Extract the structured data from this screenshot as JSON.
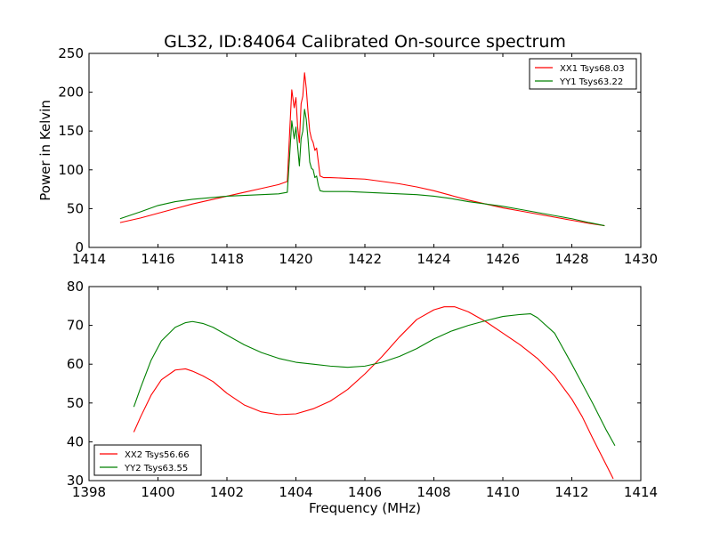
{
  "chart_data": {
    "title": "GL32, ID:84064 Calibrated On-source spectrum",
    "xlabel_shared": "Frequency (MHz)",
    "panels": [
      {
        "type": "line",
        "ylabel": "Power in Kelvin",
        "xlabel": "",
        "xlim": [
          1414,
          1430
        ],
        "ylim": [
          0,
          250
        ],
        "xticks": [
          1414,
          1416,
          1418,
          1420,
          1422,
          1424,
          1426,
          1428,
          1430
        ],
        "yticks": [
          0,
          50,
          100,
          150,
          200,
          250
        ],
        "grid": false,
        "legend_position": "top-right",
        "series": [
          {
            "name": "XX1 Tsys68.03",
            "color": "#ff0000",
            "x": [
              1414.9,
              1415.5,
              1416.0,
              1416.5,
              1417.0,
              1417.5,
              1418.0,
              1418.5,
              1419.0,
              1419.5,
              1419.75,
              1419.82,
              1419.88,
              1419.95,
              1420.0,
              1420.05,
              1420.1,
              1420.15,
              1420.2,
              1420.25,
              1420.3,
              1420.35,
              1420.4,
              1420.45,
              1420.5,
              1420.55,
              1420.6,
              1420.65,
              1420.7,
              1420.8,
              1421.0,
              1421.5,
              1422.0,
              1422.5,
              1423.0,
              1423.5,
              1424.0,
              1424.5,
              1425.0,
              1425.5,
              1426.0,
              1426.5,
              1427.0,
              1427.5,
              1428.0,
              1428.5,
              1428.95
            ],
            "y": [
              32,
              38,
              44,
              50,
              56,
              61,
              66,
              71,
              76,
              81,
              85,
              150,
              203,
              180,
              193,
              155,
              135,
              185,
              195,
              225,
              205,
              175,
              150,
              140,
              135,
              125,
              128,
              110,
              92,
              90,
              90,
              89,
              88,
              85,
              82,
              78,
              73,
              67,
              61,
              56,
              51,
              47,
              43,
              39,
              35,
              31,
              28
            ]
          },
          {
            "name": "YY1 Tsys63.22",
            "color": "#008000",
            "x": [
              1414.9,
              1415.5,
              1416.0,
              1416.5,
              1417.0,
              1417.5,
              1418.0,
              1418.5,
              1419.0,
              1419.5,
              1419.75,
              1419.82,
              1419.88,
              1419.95,
              1420.0,
              1420.05,
              1420.1,
              1420.15,
              1420.2,
              1420.25,
              1420.3,
              1420.35,
              1420.4,
              1420.45,
              1420.5,
              1420.55,
              1420.6,
              1420.65,
              1420.7,
              1420.8,
              1421.0,
              1421.5,
              1422.0,
              1422.5,
              1423.0,
              1423.5,
              1424.0,
              1424.5,
              1425.0,
              1425.5,
              1426.0,
              1426.5,
              1427.0,
              1427.5,
              1428.0,
              1428.5,
              1428.95
            ],
            "y": [
              37,
              46,
              54,
              59,
              62,
              64,
              66,
              67,
              68,
              69,
              71,
              120,
              163,
              140,
              155,
              130,
              105,
              140,
              150,
              178,
              165,
              140,
              110,
              102,
              100,
              90,
              92,
              80,
              73,
              72,
              72,
              72,
              71,
              70,
              69,
              68,
              66,
              63,
              59,
              56,
              53,
              49,
              45,
              41,
              37,
              32,
              28
            ]
          }
        ]
      },
      {
        "type": "line",
        "ylabel": "",
        "xlabel": "Frequency (MHz)",
        "xlim": [
          1398,
          1414
        ],
        "ylim": [
          30,
          80
        ],
        "xticks": [
          1398,
          1400,
          1402,
          1404,
          1406,
          1408,
          1410,
          1412,
          1414
        ],
        "yticks": [
          30,
          40,
          50,
          60,
          70,
          80
        ],
        "grid": false,
        "legend_position": "bottom-left",
        "series": [
          {
            "name": "XX2 Tsys56.66",
            "color": "#ff0000",
            "x": [
              1399.3,
              1399.5,
              1399.8,
              1400.1,
              1400.5,
              1400.8,
              1401.0,
              1401.3,
              1401.6,
              1402.0,
              1402.5,
              1403.0,
              1403.5,
              1404.0,
              1404.5,
              1405.0,
              1405.5,
              1406.0,
              1406.5,
              1407.0,
              1407.5,
              1408.0,
              1408.3,
              1408.6,
              1409.0,
              1409.5,
              1410.0,
              1410.5,
              1411.0,
              1411.5,
              1412.0,
              1412.3,
              1412.6,
              1413.0,
              1413.2
            ],
            "y": [
              42.5,
              46.5,
              52,
              56,
              58.5,
              58.8,
              58.2,
              57,
              55.5,
              52.5,
              49.5,
              47.7,
              47,
              47.2,
              48.5,
              50.5,
              53.5,
              57.5,
              62,
              67,
              71.5,
              74,
              74.8,
              74.8,
              73.5,
              71,
              68,
              65,
              61.5,
              57,
              51,
              46.5,
              41,
              34,
              30.5
            ]
          },
          {
            "name": "YY2 Tsys63.55",
            "color": "#008000",
            "x": [
              1399.3,
              1399.5,
              1399.8,
              1400.1,
              1400.5,
              1400.8,
              1401.0,
              1401.3,
              1401.6,
              1402.0,
              1402.5,
              1403.0,
              1403.5,
              1404.0,
              1404.5,
              1405.0,
              1405.5,
              1406.0,
              1406.5,
              1407.0,
              1407.5,
              1408.0,
              1408.5,
              1409.0,
              1409.5,
              1410.0,
              1410.5,
              1410.8,
              1411.0,
              1411.5,
              1412.0,
              1412.3,
              1412.6,
              1413.0,
              1413.25
            ],
            "y": [
              49,
              54,
              61,
              66,
              69.5,
              70.7,
              71,
              70.5,
              69.5,
              67.5,
              65,
              63,
              61.5,
              60.5,
              60,
              59.5,
              59.2,
              59.5,
              60.5,
              62,
              64,
              66.5,
              68.5,
              70,
              71.2,
              72.3,
              72.8,
              73,
              72,
              68,
              60,
              55,
              50,
              43,
              39
            ]
          }
        ]
      }
    ]
  }
}
